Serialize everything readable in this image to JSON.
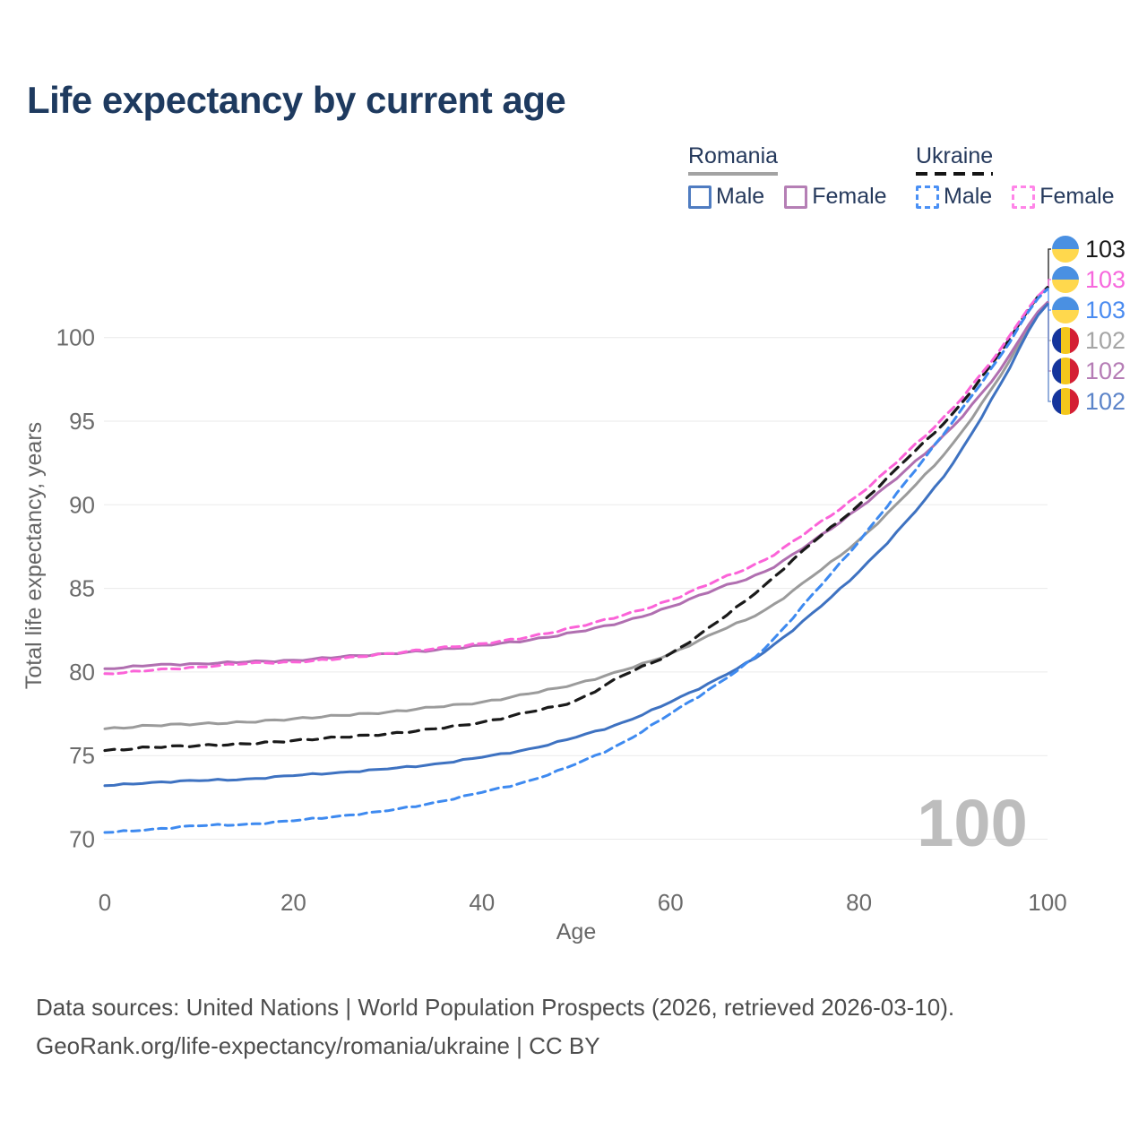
{
  "title": "Life expectancy by current age",
  "legend": {
    "groups": [
      {
        "title": "Romania",
        "line_style": "solid",
        "underline_color": "#a3a3a3",
        "items": [
          {
            "label": "Male",
            "color": "#4f7cc1"
          },
          {
            "label": "Female",
            "color": "#b57fb5"
          }
        ]
      },
      {
        "title": "Ukraine",
        "line_style": "dashed",
        "underline_color": "#151515",
        "items": [
          {
            "label": "Male",
            "color": "#4a90f5"
          },
          {
            "label": "Female",
            "color": "#ff85e8"
          }
        ]
      }
    ]
  },
  "chart_data": {
    "type": "line",
    "title": "Life expectancy by current age",
    "xlabel": "Age",
    "ylabel": "Total life expectancy, years",
    "x_ticks": [
      0,
      20,
      40,
      60,
      80,
      100
    ],
    "y_ticks": [
      70,
      75,
      80,
      85,
      90,
      95,
      100
    ],
    "xlim": [
      0,
      100
    ],
    "ylim": [
      67,
      104
    ],
    "grid": "horizontal",
    "hover_age_label": "100",
    "ages": [
      0,
      5,
      10,
      15,
      20,
      25,
      30,
      35,
      40,
      45,
      50,
      55,
      60,
      65,
      70,
      75,
      80,
      85,
      90,
      95,
      100
    ],
    "series": [
      {
        "key": "romania-total",
        "name": "Romania",
        "gender": "total",
        "color": "#9b9b9b",
        "label_color": "#a5a5a5",
        "dash": null,
        "width": 3,
        "flag": "ro",
        "end_label": "102",
        "row": 3,
        "values": [
          76.6,
          76.8,
          76.9,
          77.0,
          77.2,
          77.4,
          77.6,
          77.9,
          78.2,
          78.7,
          79.3,
          80.1,
          81.1,
          82.4,
          83.7,
          85.7,
          87.9,
          90.6,
          93.7,
          97.7,
          102.1
        ]
      },
      {
        "key": "romania-female",
        "name": "Romania",
        "gender": "female",
        "color": "#b06fb0",
        "label_color": "#b57cb5",
        "dash": null,
        "width": 3,
        "flag": "ro",
        "end_label": "102",
        "row": 4,
        "values": [
          80.2,
          80.4,
          80.5,
          80.6,
          80.7,
          80.9,
          81.1,
          81.3,
          81.6,
          81.9,
          82.4,
          83.0,
          83.9,
          85.0,
          86.0,
          87.8,
          89.8,
          92.1,
          94.7,
          98.1,
          102.1
        ]
      },
      {
        "key": "romania-male",
        "name": "Romania",
        "gender": "male",
        "color": "#3e72c1",
        "label_color": "#5c84c9",
        "dash": null,
        "width": 3,
        "flag": "ro",
        "end_label": "102",
        "row": 5,
        "values": [
          73.2,
          73.4,
          73.5,
          73.6,
          73.8,
          74.0,
          74.2,
          74.5,
          74.9,
          75.4,
          76.1,
          77.0,
          78.2,
          79.6,
          81.2,
          83.5,
          86.0,
          89.0,
          92.5,
          97.2,
          102.0
        ]
      },
      {
        "key": "ukraine-total",
        "name": "Ukraine",
        "gender": "total",
        "color": "#1a1a1a",
        "label_color": "#1a1a1a",
        "dash": "11 8",
        "width": 3.2,
        "flag": "ua",
        "end_label": "103",
        "row": 0,
        "values": [
          75.3,
          75.5,
          75.6,
          75.7,
          75.9,
          76.1,
          76.3,
          76.6,
          77.0,
          77.6,
          78.3,
          79.8,
          81.1,
          83.0,
          85.2,
          87.7,
          90.0,
          92.7,
          95.5,
          99.1,
          103.0
        ]
      },
      {
        "key": "ukraine-female",
        "name": "Ukraine",
        "gender": "female",
        "color": "#fb63d8",
        "label_color": "#f768dd",
        "dash": "9 6",
        "width": 3,
        "flag": "ua",
        "end_label": "103",
        "row": 1,
        "values": [
          79.9,
          80.1,
          80.3,
          80.5,
          80.6,
          80.8,
          81.1,
          81.4,
          81.7,
          82.1,
          82.7,
          83.4,
          84.3,
          85.5,
          86.7,
          88.6,
          90.6,
          93.1,
          95.8,
          99.3,
          103.0
        ]
      },
      {
        "key": "ukraine-male",
        "name": "Ukraine",
        "gender": "male",
        "color": "#3e8af0",
        "label_color": "#4a8bf0",
        "dash": "9 6",
        "width": 3,
        "flag": "ua",
        "end_label": "103",
        "row": 2,
        "values": [
          70.4,
          70.6,
          70.8,
          70.9,
          71.1,
          71.4,
          71.7,
          72.2,
          72.8,
          73.5,
          74.5,
          75.8,
          77.5,
          79.3,
          81.4,
          84.6,
          87.8,
          91.4,
          95.0,
          98.9,
          102.9
        ]
      }
    ],
    "end_label_rows_top_to_bottom": [
      "ukraine-total",
      "ukraine-female",
      "ukraine-male",
      "romania-total",
      "romania-female",
      "romania-male"
    ]
  },
  "footer": {
    "line1": "Data sources: United Nations | World Population Prospects (2026, retrieved 2026-03-10).",
    "line2": "GeoRank.org/life-expectancy/romania/ukraine | CC BY"
  }
}
